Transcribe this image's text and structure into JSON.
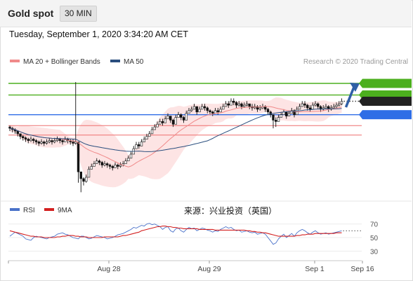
{
  "header": {
    "title": "Gold spot",
    "timeframe": "30 MIN"
  },
  "datetime": "Tuesday, September 1, 2020 3:34:20 AM CET",
  "watermark": "Research © 2020 Trading Central",
  "legend": {
    "price": [
      {
        "name": "MA 20 + Bollinger Bands",
        "color": "#f08a8a"
      },
      {
        "name": "MA 50",
        "color": "#2a4e7e"
      }
    ],
    "rsi": [
      {
        "name": "RSI",
        "color": "#4a72c9"
      },
      {
        "name": "9MA",
        "color": "#d32020"
      }
    ]
  },
  "annotation": "来源：兴业投资（英国）",
  "colors": {
    "resistance": "#4caf1e",
    "pivot": "#2f6ee6",
    "support": "#ee6f6f",
    "last_price": "#222222",
    "candle_up": "#ffffff",
    "candle_down": "#111111",
    "bollinger_fill": "#fde4e4",
    "arrow": "#2f5fa6"
  },
  "chart_data": [
    {
      "type": "candlestick",
      "ylim": [
        1899,
        2002
      ],
      "x_ticks": [
        "Aug 28",
        "Aug 29",
        "Sep 1",
        "Sep 16"
      ],
      "levels": [
        {
          "kind": "resistance",
          "label": "1985.00",
          "value": 1985.0
        },
        {
          "kind": "resistance",
          "label": "1976.50",
          "value": 1976.5
        },
        {
          "kind": "last",
          "label": "1971.87",
          "value": 1971.87
        },
        {
          "kind": "pivot",
          "label": "1962.00",
          "value": 1962.0
        },
        {
          "kind": "support",
          "label": "1954.00",
          "value": 1954.0
        },
        {
          "kind": "support",
          "label": "1947.00",
          "value": 1947.0
        }
      ],
      "forecast_arrow": {
        "from": 1967.5,
        "to": 1985.0
      },
      "close": [
        1952,
        1951,
        1950,
        1948,
        1946,
        1945,
        1944,
        1943,
        1944,
        1943,
        1942,
        1941,
        1942,
        1941,
        1942,
        1943,
        1942,
        1943,
        1944,
        1943,
        1942,
        1944,
        1943,
        1942,
        1941,
        1942,
        1920,
        1915,
        1913,
        1916,
        1922,
        1924,
        1926,
        1928,
        1927,
        1925,
        1926,
        1925,
        1924,
        1923,
        1925,
        1924,
        1925,
        1926,
        1928,
        1930,
        1933,
        1937,
        1940,
        1939,
        1942,
        1944,
        1946,
        1948,
        1951,
        1953,
        1955,
        1957,
        1956,
        1959,
        1961,
        1958,
        1955,
        1960,
        1962,
        1960,
        1958,
        1963,
        1965,
        1966,
        1968,
        1964,
        1966,
        1968,
        1967,
        1965,
        1964,
        1963,
        1965,
        1964,
        1966,
        1968,
        1970,
        1969,
        1972,
        1971,
        1969,
        1970,
        1968,
        1969,
        1970,
        1968,
        1967,
        1968,
        1966,
        1967,
        1968,
        1966,
        1964,
        1962,
        1958,
        1957,
        1960,
        1962,
        1964,
        1961,
        1963,
        1965,
        1962,
        1966,
        1968,
        1970,
        1969,
        1967,
        1966,
        1969,
        1970,
        1968,
        1966,
        1967,
        1968,
        1966,
        1967,
        1968,
        1969,
        1970,
        1971.87
      ],
      "high": [
        1954,
        1953,
        1952,
        1950,
        1948,
        1947,
        1946,
        1945,
        1946,
        1945,
        1944,
        1943,
        1944,
        1943,
        1944,
        1945,
        1944,
        1945,
        1946,
        1945,
        1944,
        1946,
        1945,
        1944,
        1944,
        1986,
        1942,
        1918,
        1916,
        1918,
        1924,
        1926,
        1928,
        1930,
        1929,
        1928,
        1928,
        1927,
        1926,
        1925,
        1927,
        1926,
        1927,
        1928,
        1930,
        1932,
        1935,
        1939,
        1942,
        1942,
        1944,
        1946,
        1948,
        1950,
        1953,
        1955,
        1957,
        1959,
        1959,
        1961,
        1963,
        1961,
        1959,
        1962,
        1964,
        1963,
        1961,
        1965,
        1967,
        1968,
        1970,
        1968,
        1968,
        1970,
        1970,
        1968,
        1966,
        1965,
        1967,
        1967,
        1968,
        1970,
        1972,
        1972,
        1974,
        1974,
        1972,
        1972,
        1971,
        1971,
        1972,
        1970,
        1970,
        1970,
        1969,
        1969,
        1970,
        1969,
        1967,
        1965,
        1962,
        1960,
        1962,
        1964,
        1966,
        1964,
        1965,
        1967,
        1966,
        1968,
        1970,
        1972,
        1972,
        1970,
        1969,
        1971,
        1972,
        1971,
        1969,
        1969,
        1970,
        1969,
        1969,
        1970,
        1971,
        1972,
        1974
      ],
      "low": [
        1950,
        1949,
        1948,
        1946,
        1944,
        1943,
        1942,
        1941,
        1942,
        1941,
        1940,
        1939,
        1940,
        1939,
        1940,
        1941,
        1940,
        1941,
        1942,
        1941,
        1940,
        1942,
        1941,
        1940,
        1939,
        1940,
        1912,
        1905,
        1910,
        1912,
        1920,
        1922,
        1924,
        1926,
        1925,
        1923,
        1924,
        1923,
        1922,
        1921,
        1923,
        1922,
        1923,
        1924,
        1926,
        1928,
        1931,
        1935,
        1938,
        1937,
        1940,
        1942,
        1944,
        1946,
        1949,
        1951,
        1953,
        1955,
        1954,
        1957,
        1959,
        1956,
        1953,
        1958,
        1960,
        1958,
        1956,
        1961,
        1963,
        1964,
        1966,
        1962,
        1964,
        1966,
        1965,
        1963,
        1962,
        1961,
        1963,
        1962,
        1964,
        1966,
        1968,
        1967,
        1970,
        1969,
        1967,
        1968,
        1966,
        1967,
        1968,
        1966,
        1965,
        1966,
        1964,
        1965,
        1966,
        1964,
        1962,
        1960,
        1952,
        1953,
        1958,
        1960,
        1962,
        1959,
        1961,
        1963,
        1960,
        1964,
        1966,
        1968,
        1967,
        1965,
        1964,
        1967,
        1968,
        1966,
        1964,
        1965,
        1966,
        1964,
        1965,
        1966,
        1967,
        1968,
        1969
      ]
    },
    {
      "type": "line",
      "ylim": [
        20,
        80
      ],
      "y_ticks": [
        30,
        50,
        70
      ],
      "series": [
        {
          "name": "RSI",
          "values": [
            52,
            55,
            58,
            56,
            54,
            52,
            48,
            47,
            46,
            50,
            52,
            51,
            50,
            49,
            48,
            50,
            51,
            52,
            55,
            56,
            57,
            55,
            54,
            52,
            50,
            49,
            48,
            52,
            52,
            50,
            48,
            49,
            51,
            53,
            52,
            51,
            50,
            48,
            49,
            50,
            52,
            54,
            55,
            56,
            58,
            60,
            62,
            65,
            64,
            66,
            68,
            67,
            70,
            71,
            69,
            70,
            68,
            66,
            62,
            65,
            66,
            60,
            58,
            63,
            64,
            60,
            58,
            62,
            65,
            63,
            64,
            60,
            62,
            64,
            63,
            61,
            60,
            58,
            60,
            59,
            62,
            64,
            66,
            64,
            65,
            62,
            60,
            61,
            58,
            59,
            60,
            58,
            57,
            58,
            55,
            56,
            57,
            55,
            50,
            45,
            40,
            42,
            48,
            52,
            55,
            50,
            53,
            56,
            52,
            57,
            60,
            62,
            60,
            57,
            55,
            58,
            60,
            57,
            55,
            56,
            57,
            55,
            56,
            57,
            58,
            59,
            60
          ]
        },
        {
          "name": "9MA",
          "values": [
            60,
            59,
            58,
            57,
            56,
            55,
            54,
            53,
            52,
            52,
            51,
            51,
            51,
            50,
            50,
            50,
            50,
            50,
            51,
            51,
            52,
            52,
            53,
            53,
            53,
            52,
            52,
            51,
            51,
            51,
            50,
            50,
            50,
            50,
            50,
            50,
            51,
            51,
            51,
            51,
            51,
            51,
            52,
            53,
            53,
            54,
            55,
            56,
            57,
            58,
            60,
            61,
            62,
            63,
            64,
            65,
            66,
            66,
            67,
            67,
            66,
            66,
            65,
            65,
            64,
            64,
            63,
            63,
            63,
            63,
            63,
            63,
            62,
            62,
            62,
            62,
            62,
            62,
            61,
            61,
            61,
            61,
            61,
            61,
            61,
            61,
            61,
            61,
            61,
            61,
            60,
            60,
            59,
            59,
            58,
            58,
            57,
            57,
            56,
            55,
            54,
            53,
            52,
            52,
            52,
            52,
            52,
            52,
            52,
            53,
            53,
            54,
            54,
            55,
            55,
            55,
            56,
            56,
            56,
            56,
            56,
            56,
            56,
            56,
            57,
            57,
            57
          ]
        }
      ]
    }
  ]
}
